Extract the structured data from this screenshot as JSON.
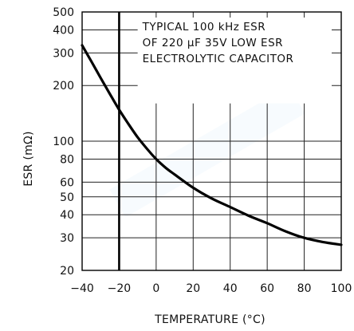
{
  "chart_data": {
    "type": "line",
    "annotation": [
      "TYPICAL 100 kHz ESR",
      "OF 220 µF 35V LOW ESR",
      "ELECTROLYTIC CAPACITOR"
    ],
    "xlabel": "TEMPERATURE (°C)",
    "ylabel": "ESR (mΩ)",
    "xlim": [
      -40,
      100
    ],
    "ylim": [
      20,
      500
    ],
    "yscale": "log",
    "grid": true,
    "x_ticks": [
      -40,
      -20,
      0,
      20,
      40,
      60,
      80,
      100
    ],
    "x_tick_labels": [
      "−40",
      "−20",
      "0",
      "20",
      "40",
      "60",
      "80",
      "100"
    ],
    "y_ticks": [
      20,
      30,
      40,
      50,
      60,
      80,
      100,
      200,
      300,
      400,
      500
    ],
    "y_tick_labels": [
      "20",
      "30",
      "40",
      "50",
      "60",
      "80",
      "100",
      "200",
      "300",
      "400",
      "500"
    ],
    "highlight_x": -20,
    "series": [
      {
        "x": [
          -40,
          -35,
          -30,
          -25,
          -20,
          -15,
          -10,
          -5,
          0,
          5,
          10,
          20,
          30,
          40,
          50,
          60,
          70,
          80,
          90,
          100
        ],
        "y": [
          330,
          270,
          220,
          180,
          148,
          124,
          105,
          91,
          80,
          72,
          66,
          56,
          49,
          44,
          39.5,
          36,
          32.5,
          30,
          28.5,
          27.5
        ]
      }
    ]
  }
}
